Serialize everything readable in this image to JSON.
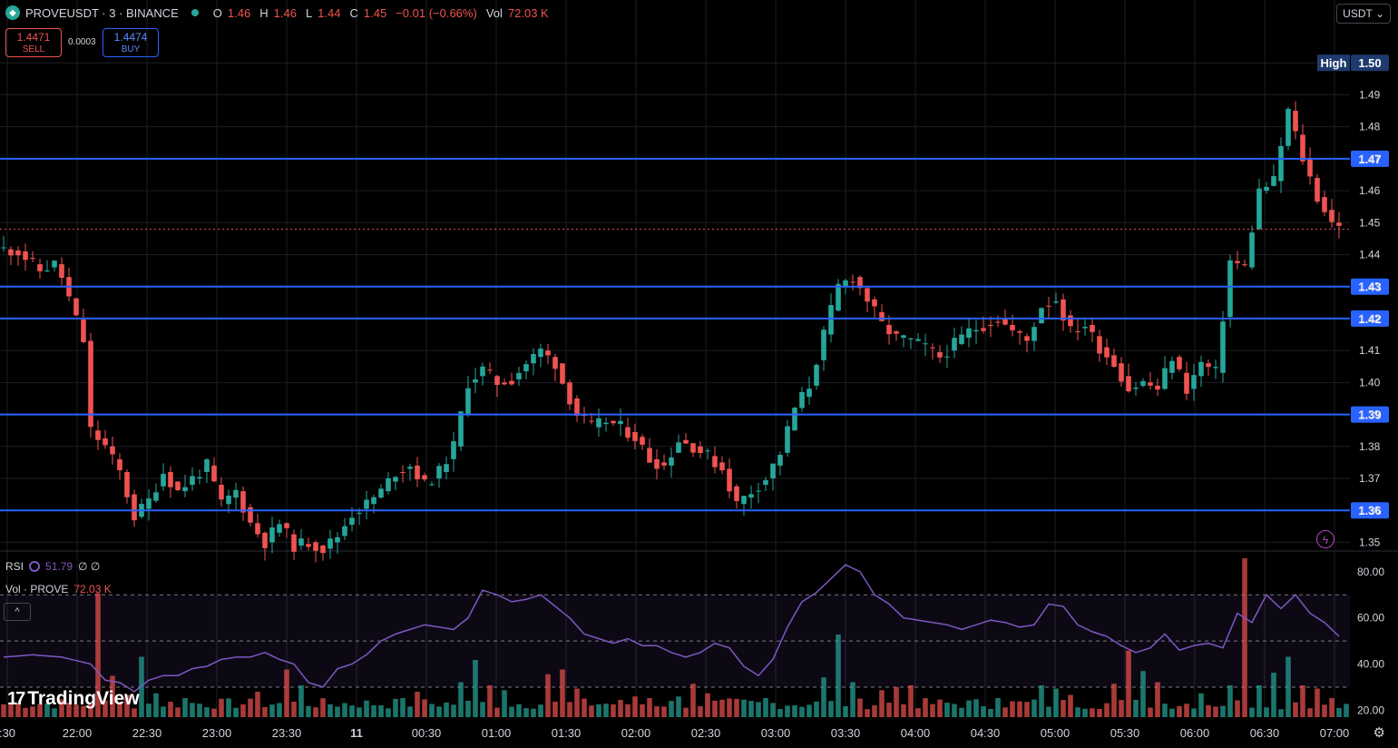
{
  "header": {
    "title": "PROVEUSDT · 3 · BINANCE",
    "ohlc": [
      {
        "k": "O",
        "v": "1.46"
      },
      {
        "k": "H",
        "v": "1.46"
      },
      {
        "k": "L",
        "v": "1.44"
      },
      {
        "k": "C",
        "v": "1.45"
      }
    ],
    "change": "−0.01 (−0.66%)",
    "vol_label": "Vol",
    "vol_value": "72.03 K"
  },
  "trade": {
    "sell_price": "1.4471",
    "sell_label": "SELL",
    "spread": "0.0003",
    "buy_price": "1.4474",
    "buy_label": "BUY"
  },
  "currency": "USDT ⌄",
  "indicators": {
    "rsi_label": "RSI",
    "rsi_value": "51.79",
    "rsi_extra": "∅ ∅",
    "vol_label": "Vol · PROVE",
    "vol_value": "72.03 K",
    "collapse": "^"
  },
  "branding": "TradingView",
  "colors": {
    "up": "#26a69a",
    "down": "#ef5350",
    "level": "#2962ff",
    "rsi": "#7e57c2"
  },
  "chart_data": {
    "type": "candlestick",
    "symbol": "PROVEUSDT",
    "interval": "3",
    "exchange": "BINANCE",
    "y_ticks": [
      "1.35",
      "1.36",
      "1.37",
      "1.38",
      "1.39",
      "1.40",
      "1.41",
      "1.42",
      "1.43",
      "1.44",
      "1.45",
      "1.46",
      "1.47",
      "1.48",
      "1.49",
      "1.50"
    ],
    "ylim": [
      1.347,
      1.51
    ],
    "x_ticks": [
      ":30",
      "22:00",
      "22:30",
      "23:00",
      "23:30",
      "11",
      "00:30",
      "01:00",
      "01:30",
      "02:00",
      "02:30",
      "03:00",
      "03:30",
      "04:00",
      "04:30",
      "05:00",
      "05:30",
      "06:00",
      "06:30",
      "07:00"
    ],
    "horizontal_levels": [
      "1.47",
      "1.43",
      "1.42",
      "1.39",
      "1.36"
    ],
    "high_label": "High",
    "high_value": "1.50",
    "current_price": 1.448,
    "close_path": [
      [
        0,
        1.442
      ],
      [
        3,
        1.441
      ],
      [
        6,
        1.435
      ],
      [
        8,
        1.437
      ],
      [
        9,
        1.433
      ],
      [
        12,
        1.413
      ],
      [
        13,
        1.385
      ],
      [
        15,
        1.38
      ],
      [
        17,
        1.372
      ],
      [
        19,
        1.358
      ],
      [
        21,
        1.363
      ],
      [
        23,
        1.372
      ],
      [
        25,
        1.366
      ],
      [
        27,
        1.37
      ],
      [
        29,
        1.374
      ],
      [
        31,
        1.362
      ],
      [
        33,
        1.366
      ],
      [
        35,
        1.356
      ],
      [
        37,
        1.35
      ],
      [
        39,
        1.356
      ],
      [
        41,
        1.349
      ],
      [
        43,
        1.35
      ],
      [
        45,
        1.348
      ],
      [
        47,
        1.352
      ],
      [
        49,
        1.359
      ],
      [
        51,
        1.362
      ],
      [
        53,
        1.366
      ],
      [
        55,
        1.372
      ],
      [
        57,
        1.374
      ],
      [
        59,
        1.368
      ],
      [
        61,
        1.372
      ],
      [
        63,
        1.38
      ],
      [
        65,
        1.4
      ],
      [
        67,
        1.404
      ],
      [
        69,
        1.4
      ],
      [
        71,
        1.401
      ],
      [
        73,
        1.406
      ],
      [
        75,
        1.41
      ],
      [
        77,
        1.406
      ],
      [
        78,
        1.4
      ],
      [
        80,
        1.39
      ],
      [
        82,
        1.386
      ],
      [
        84,
        1.388
      ],
      [
        86,
        1.386
      ],
      [
        88,
        1.383
      ],
      [
        90,
        1.376
      ],
      [
        92,
        1.374
      ],
      [
        94,
        1.382
      ],
      [
        96,
        1.38
      ],
      [
        98,
        1.377
      ],
      [
        100,
        1.373
      ],
      [
        102,
        1.362
      ],
      [
        104,
        1.366
      ],
      [
        106,
        1.37
      ],
      [
        108,
        1.378
      ],
      [
        110,
        1.392
      ],
      [
        112,
        1.399
      ],
      [
        114,
        1.415
      ],
      [
        116,
        1.43
      ],
      [
        118,
        1.433
      ],
      [
        120,
        1.426
      ],
      [
        122,
        1.418
      ],
      [
        124,
        1.414
      ],
      [
        126,
        1.413
      ],
      [
        128,
        1.411
      ],
      [
        130,
        1.408
      ],
      [
        132,
        1.412
      ],
      [
        134,
        1.416
      ],
      [
        136,
        1.418
      ],
      [
        138,
        1.42
      ],
      [
        140,
        1.416
      ],
      [
        142,
        1.413
      ],
      [
        144,
        1.424
      ],
      [
        146,
        1.426
      ],
      [
        148,
        1.416
      ],
      [
        150,
        1.418
      ],
      [
        152,
        1.411
      ],
      [
        154,
        1.406
      ],
      [
        156,
        1.398
      ],
      [
        158,
        1.4
      ],
      [
        160,
        1.398
      ],
      [
        162,
        1.408
      ],
      [
        164,
        1.398
      ],
      [
        166,
        1.406
      ],
      [
        168,
        1.403
      ],
      [
        170,
        1.438
      ],
      [
        172,
        1.436
      ],
      [
        174,
        1.46
      ],
      [
        176,
        1.463
      ],
      [
        178,
        1.485
      ],
      [
        180,
        1.47
      ],
      [
        182,
        1.458
      ],
      [
        184,
        1.45
      ]
    ],
    "rsi": {
      "y_ticks": [
        "20.00",
        "40.00",
        "60.00",
        "80.00"
      ],
      "ylim": [
        17,
        87
      ],
      "bands": [
        30,
        50,
        70
      ],
      "values": [
        [
          0,
          43
        ],
        [
          4,
          44
        ],
        [
          8,
          43
        ],
        [
          12,
          40
        ],
        [
          14,
          33
        ],
        [
          16,
          32
        ],
        [
          18,
          28
        ],
        [
          20,
          33
        ],
        [
          22,
          35
        ],
        [
          24,
          35
        ],
        [
          26,
          38
        ],
        [
          28,
          39
        ],
        [
          30,
          42
        ],
        [
          32,
          43
        ],
        [
          34,
          43
        ],
        [
          36,
          45
        ],
        [
          38,
          42
        ],
        [
          40,
          40
        ],
        [
          42,
          32
        ],
        [
          44,
          30
        ],
        [
          46,
          38
        ],
        [
          48,
          40
        ],
        [
          50,
          44
        ],
        [
          52,
          50
        ],
        [
          54,
          53
        ],
        [
          56,
          55
        ],
        [
          58,
          57
        ],
        [
          60,
          56
        ],
        [
          62,
          55
        ],
        [
          64,
          60
        ],
        [
          66,
          72
        ],
        [
          68,
          70
        ],
        [
          70,
          67
        ],
        [
          72,
          68
        ],
        [
          74,
          70
        ],
        [
          76,
          65
        ],
        [
          78,
          60
        ],
        [
          80,
          53
        ],
        [
          82,
          51
        ],
        [
          84,
          49
        ],
        [
          86,
          51
        ],
        [
          88,
          48
        ],
        [
          90,
          48
        ],
        [
          92,
          45
        ],
        [
          94,
          43
        ],
        [
          96,
          45
        ],
        [
          98,
          49
        ],
        [
          100,
          47
        ],
        [
          102,
          39
        ],
        [
          104,
          35
        ],
        [
          106,
          42
        ],
        [
          108,
          56
        ],
        [
          110,
          67
        ],
        [
          112,
          71
        ],
        [
          114,
          77
        ],
        [
          116,
          83
        ],
        [
          118,
          80
        ],
        [
          120,
          70
        ],
        [
          122,
          66
        ],
        [
          124,
          60
        ],
        [
          126,
          59
        ],
        [
          128,
          58
        ],
        [
          130,
          57
        ],
        [
          132,
          55
        ],
        [
          134,
          57
        ],
        [
          136,
          59
        ],
        [
          138,
          58
        ],
        [
          140,
          56
        ],
        [
          142,
          57
        ],
        [
          144,
          66
        ],
        [
          146,
          65
        ],
        [
          148,
          57
        ],
        [
          150,
          54
        ],
        [
          152,
          52
        ],
        [
          154,
          48
        ],
        [
          156,
          45
        ],
        [
          158,
          47
        ],
        [
          160,
          53
        ],
        [
          162,
          46
        ],
        [
          164,
          48
        ],
        [
          166,
          49
        ],
        [
          168,
          47
        ],
        [
          170,
          62
        ],
        [
          172,
          58
        ],
        [
          174,
          70
        ],
        [
          176,
          64
        ],
        [
          178,
          70
        ],
        [
          180,
          62
        ],
        [
          182,
          58
        ],
        [
          184,
          52
        ]
      ]
    },
    "volume": {
      "bars": [
        [
          0,
          0.08
        ],
        [
          12,
          0.08
        ],
        [
          13,
          0.78
        ],
        [
          15,
          0.26
        ],
        [
          17,
          0.14
        ],
        [
          19,
          0.38
        ],
        [
          21,
          0.15
        ],
        [
          25,
          0.12
        ],
        [
          35,
          0.16
        ],
        [
          39,
          0.3
        ],
        [
          41,
          0.2
        ],
        [
          55,
          0.12
        ],
        [
          57,
          0.16
        ],
        [
          63,
          0.22
        ],
        [
          65,
          0.36
        ],
        [
          67,
          0.2
        ],
        [
          69,
          0.17
        ],
        [
          75,
          0.27
        ],
        [
          77,
          0.3
        ],
        [
          79,
          0.18
        ],
        [
          87,
          0.13
        ],
        [
          89,
          0.12
        ],
        [
          93,
          0.13
        ],
        [
          95,
          0.21
        ],
        [
          97,
          0.15
        ],
        [
          105,
          0.12
        ],
        [
          113,
          0.25
        ],
        [
          115,
          0.52
        ],
        [
          117,
          0.22
        ],
        [
          121,
          0.17
        ],
        [
          123,
          0.19
        ],
        [
          125,
          0.2
        ],
        [
          137,
          0.12
        ],
        [
          143,
          0.2
        ],
        [
          145,
          0.18
        ],
        [
          147,
          0.14
        ],
        [
          153,
          0.21
        ],
        [
          155,
          0.42
        ],
        [
          157,
          0.29
        ],
        [
          159,
          0.22
        ],
        [
          165,
          0.15
        ],
        [
          169,
          0.2
        ],
        [
          171,
          1.0
        ],
        [
          173,
          0.2
        ],
        [
          175,
          0.28
        ],
        [
          177,
          0.38
        ],
        [
          179,
          0.2
        ],
        [
          181,
          0.18
        ],
        [
          183,
          0.12
        ]
      ]
    }
  }
}
